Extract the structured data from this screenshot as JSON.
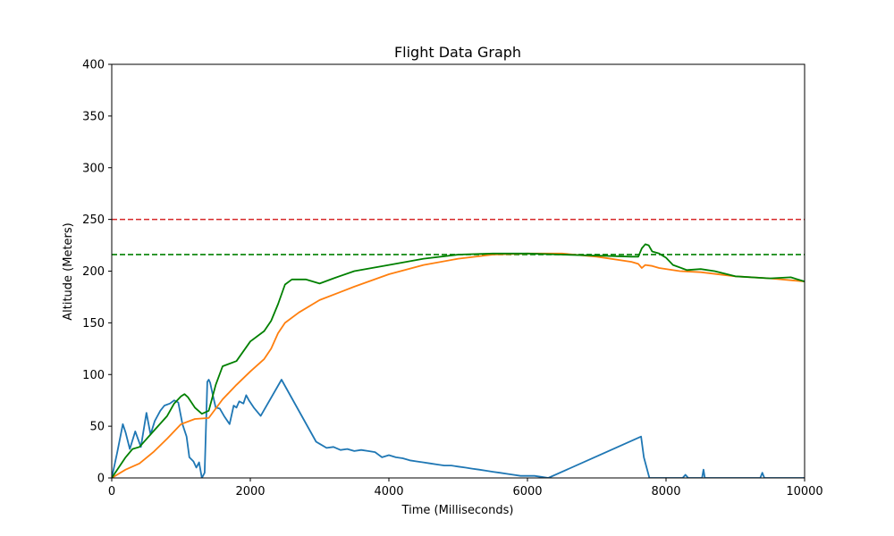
{
  "chart_data": {
    "type": "line",
    "title": "Flight Data Graph",
    "xlabel": "Time (Milliseconds)",
    "ylabel": "Altitude (Meters)",
    "xlim": [
      0,
      10000
    ],
    "ylim": [
      0,
      400
    ],
    "xticks": [
      0,
      2000,
      4000,
      6000,
      8000,
      10000
    ],
    "yticks": [
      0,
      50,
      100,
      150,
      200,
      250,
      300,
      350,
      400
    ],
    "grid": false,
    "legend": "none",
    "reference_lines": [
      {
        "y": 250,
        "color": "#d62728",
        "style": "dashed"
      },
      {
        "y": 216,
        "color": "#008000",
        "style": "dashed"
      }
    ],
    "series": [
      {
        "color": "#1f77b4",
        "x": [
          0,
          80,
          160,
          200,
          260,
          340,
          420,
          500,
          560,
          620,
          700,
          760,
          840,
          900,
          960,
          1020,
          1080,
          1120,
          1180,
          1220,
          1260,
          1300,
          1340,
          1380,
          1400,
          1420,
          1460,
          1500,
          1560,
          1620,
          1700,
          1760,
          1800,
          1840,
          1900,
          1940,
          1980,
          2050,
          2150,
          2450,
          2950,
          3000,
          3100,
          3200,
          3300,
          3400,
          3500,
          3600,
          3700,
          3800,
          3900,
          4000,
          4100,
          4200,
          4300,
          4400,
          4500,
          4600,
          4700,
          4800,
          4900,
          5000,
          5100,
          5200,
          5300,
          5400,
          5500,
          5600,
          5700,
          5800,
          5900,
          6000,
          6100,
          6200,
          6300,
          7640,
          7680,
          7760,
          8240,
          8280,
          8320,
          8520,
          8540,
          8560,
          9360,
          9390,
          9420,
          10000
        ],
        "y": [
          0,
          25,
          52,
          44,
          28,
          45,
          30,
          63,
          42,
          55,
          65,
          70,
          72,
          75,
          73,
          52,
          40,
          20,
          16,
          10,
          15,
          0,
          5,
          93,
          95,
          92,
          80,
          68,
          67,
          60,
          52,
          70,
          68,
          74,
          72,
          80,
          75,
          68,
          60,
          95,
          35,
          33,
          29,
          30,
          27,
          28,
          26,
          27,
          26,
          25,
          20,
          22,
          20,
          19,
          17,
          16,
          15,
          14,
          13,
          12,
          12,
          11,
          10,
          9,
          8,
          7,
          6,
          5,
          4,
          3,
          2,
          2,
          2,
          1,
          0,
          40,
          20,
          0,
          0,
          3,
          0,
          0,
          8,
          0,
          0,
          5,
          0,
          0
        ]
      },
      {
        "color": "#ff7f0e",
        "x": [
          0,
          200,
          400,
          600,
          800,
          1000,
          1200,
          1400,
          1600,
          1800,
          2000,
          2200,
          2300,
          2400,
          2500,
          2700,
          3000,
          3500,
          4000,
          4500,
          5000,
          5500,
          6000,
          6500,
          7000,
          7500,
          7600,
          7650,
          7700,
          7800,
          7900,
          8200,
          8500,
          9000,
          9500,
          10000
        ],
        "y": [
          0,
          8,
          14,
          25,
          38,
          52,
          57,
          58,
          76,
          90,
          103,
          115,
          125,
          140,
          150,
          160,
          172,
          185,
          197,
          206,
          212,
          216,
          217,
          217,
          214,
          209,
          207,
          203,
          206,
          205,
          203,
          200,
          199,
          195,
          193,
          190
        ]
      },
      {
        "color": "#008000",
        "x": [
          0,
          200,
          300,
          400,
          600,
          800,
          900,
          1000,
          1050,
          1100,
          1200,
          1300,
          1400,
          1500,
          1600,
          1800,
          2000,
          2200,
          2300,
          2400,
          2500,
          2600,
          2800,
          3000,
          3200,
          3500,
          4000,
          4500,
          5000,
          5500,
          6000,
          6500,
          7000,
          7500,
          7600,
          7650,
          7700,
          7750,
          7800,
          7900,
          8000,
          8100,
          8300,
          8500,
          8700,
          9000,
          9500,
          9800,
          10000
        ],
        "y": [
          0,
          20,
          28,
          30,
          45,
          60,
          72,
          79,
          81,
          78,
          68,
          62,
          65,
          90,
          108,
          113,
          132,
          142,
          152,
          168,
          187,
          192,
          192,
          188,
          193,
          200,
          206,
          212,
          216,
          217,
          217,
          216,
          215,
          214,
          214,
          222,
          226,
          225,
          219,
          217,
          213,
          206,
          201,
          202,
          200,
          195,
          193,
          194,
          190
        ]
      }
    ]
  }
}
